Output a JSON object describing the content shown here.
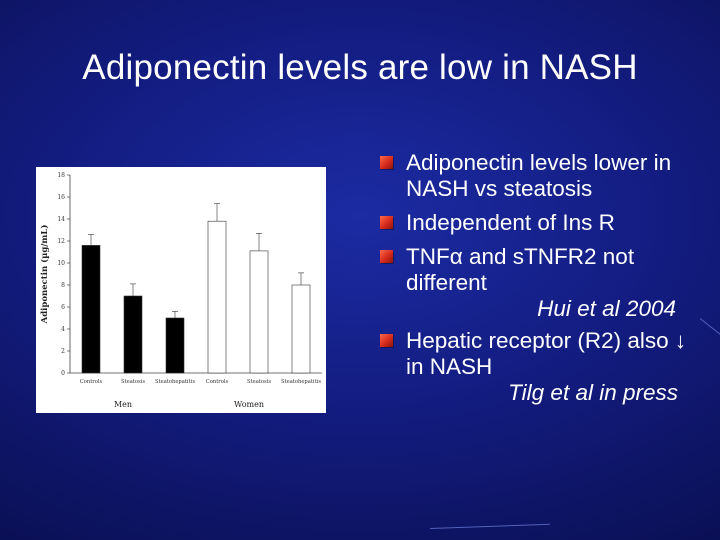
{
  "slide": {
    "title": "Adiponectin levels are low in NASH"
  },
  "bullets": [
    {
      "text": "Adiponectin levels lower in NASH vs steatosis"
    },
    {
      "text": "Independent of Ins R"
    },
    {
      "text": "TNFα and sTNFR2 not different",
      "citation": "Hui et al 2004"
    },
    {
      "text": "Hepatic receptor (R2) also ↓ in NASH",
      "citation": "Tilg et al in press"
    }
  ],
  "colors": {
    "bullet": "#d52a1c",
    "men_bar": "#000000",
    "women_bar": "#ffffff"
  },
  "chart_data": {
    "type": "bar",
    "ylabel": "Adiponectin (µg/mL)",
    "ylim": [
      0,
      18
    ],
    "yticks": [
      0,
      2,
      4,
      6,
      8,
      10,
      12,
      14,
      16,
      18
    ],
    "categories": [
      "Controls",
      "Steatosis",
      "Steatohepatitis",
      "Controls",
      "Steatosis",
      "Steatohepatitis"
    ],
    "groups": [
      {
        "name": "Men",
        "indices": [
          0,
          1,
          2
        ]
      },
      {
        "name": "Women",
        "indices": [
          3,
          4,
          5
        ]
      }
    ],
    "values": [
      11.6,
      7.0,
      5.0,
      13.8,
      11.1,
      8.0
    ],
    "errors": [
      1.0,
      1.1,
      0.6,
      1.6,
      1.6,
      1.1
    ],
    "bar_fill": [
      "black",
      "black",
      "black",
      "white",
      "white",
      "white"
    ],
    "grid": false,
    "legend": "none"
  }
}
